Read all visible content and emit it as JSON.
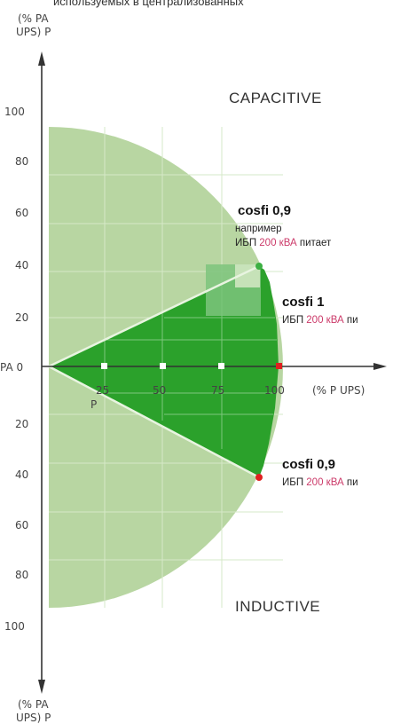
{
  "header": {
    "cut_text": "используемых в централизованных"
  },
  "axis": {
    "top_label_1": "(% PA",
    "top_label_2": "UPS) P",
    "bottom_label_1": "(% PA",
    "bottom_label_2": "UPS) P",
    "origin_label": "PA 0",
    "x_label": "(% P UPS)",
    "y_ticks_upper": [
      "100",
      "80",
      "60",
      "40",
      "20"
    ],
    "y_ticks_lower": [
      "20",
      "40",
      "60",
      "80",
      "100"
    ],
    "x_ticks": [
      "25",
      "50",
      "75",
      "100"
    ],
    "x_sub_label": "P"
  },
  "regions": {
    "capacitive": "CAPACITIVE",
    "inductive": "INDUCTIVE"
  },
  "annotations": {
    "cos09_top": {
      "title": "cosfi 0,9",
      "line1": "например",
      "line2_a": "ИБП ",
      "line2_b": "200 кВА",
      "line2_c": " питает"
    },
    "cos1": {
      "title": "cosfi 1",
      "line1_a": "ИБП ",
      "line1_b": "200 кВА",
      "line1_c": " пи"
    },
    "cos09_bottom": {
      "title": "cosfi 0,9",
      "line1_a": "ИБП ",
      "line1_b": "200 кВА",
      "line1_c": " пи"
    }
  },
  "colors": {
    "light_green": "#b7d5a1",
    "dark_green": "#2aa12a",
    "axis": "#333333",
    "accent_red": "#cc3b6a",
    "point_red": "#e02020",
    "point_green": "#3cb043"
  }
}
